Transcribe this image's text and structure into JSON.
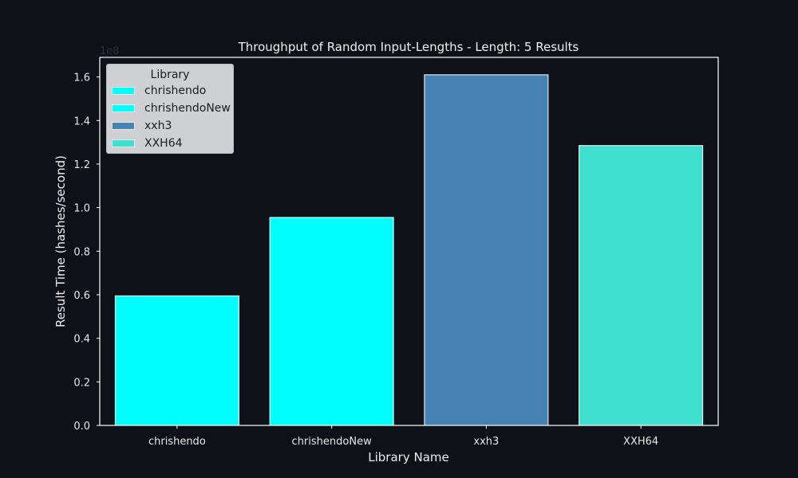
{
  "chart_data": {
    "type": "bar",
    "title": "Throughput of Random Input-Lengths - Length: 5 Results",
    "xlabel": "Library Name",
    "ylabel": "Result Time (hashes/second)",
    "y_offset_label": "1e8",
    "categories": [
      "chrishendo",
      "chrishendoNew",
      "xxh3",
      "XXH64"
    ],
    "values": [
      59500000,
      95500000,
      161000000,
      128500000
    ],
    "colors": [
      "#00ffff",
      "#00ffff",
      "#4682b4",
      "#40e0d0"
    ],
    "ylim": [
      0,
      169000000
    ],
    "yticks": [
      0,
      20000000,
      40000000,
      60000000,
      80000000,
      100000000,
      120000000,
      140000000,
      160000000
    ],
    "ytick_labels": [
      "0.0",
      "0.2",
      "0.4",
      "0.6",
      "0.8",
      "1.0",
      "1.2",
      "1.4",
      "1.6"
    ],
    "grid": false,
    "legend": {
      "title": "Library",
      "placement": "top-left",
      "entries": [
        {
          "label": "chrishendo",
          "color": "#00ffff"
        },
        {
          "label": "chrishendoNew",
          "color": "#00ffff"
        },
        {
          "label": "xxh3",
          "color": "#4682b4"
        },
        {
          "label": "XXH64",
          "color": "#40e0d0"
        }
      ]
    }
  },
  "theme": {
    "background": "#0e1118",
    "axis_color": "#ffffff",
    "text_color": "#e8e8e8"
  }
}
